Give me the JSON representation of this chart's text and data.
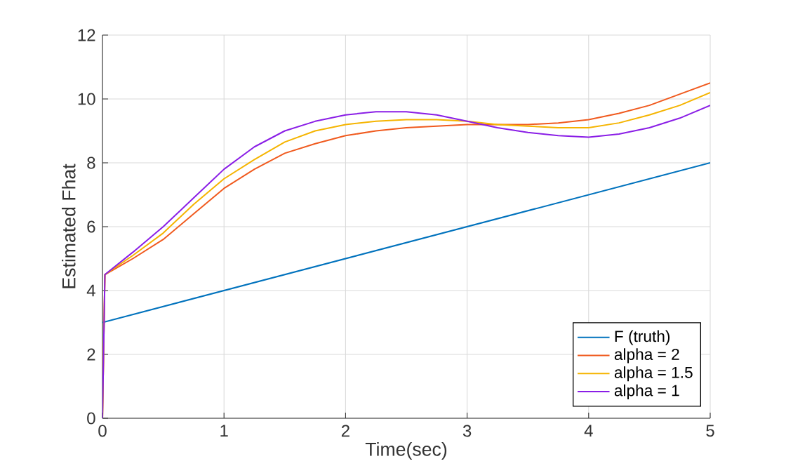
{
  "chart_data": {
    "type": "line",
    "xlabel": "Time(sec)",
    "ylabel": "Estimated Fhat",
    "xlim": [
      0,
      5
    ],
    "ylim": [
      0,
      12
    ],
    "xticks": [
      0,
      1,
      2,
      3,
      4,
      5
    ],
    "yticks": [
      0,
      2,
      4,
      6,
      8,
      10,
      12
    ],
    "grid": true,
    "legend": "bottom right",
    "line_style": "solid",
    "marker": "none",
    "series": [
      {
        "name": "F (truth)",
        "color": "#0072bd",
        "x": [
          0,
          5
        ],
        "values": [
          3,
          8
        ]
      },
      {
        "name": "alpha = 2",
        "color": "#f05a1e",
        "x": [
          0,
          0.02,
          0.25,
          0.5,
          0.75,
          1,
          1.25,
          1.5,
          1.75,
          2,
          2.25,
          2.5,
          2.75,
          3,
          3.25,
          3.5,
          3.75,
          4,
          4.25,
          4.5,
          4.75,
          5
        ],
        "values": [
          0,
          4.5,
          5.0,
          5.6,
          6.4,
          7.2,
          7.8,
          8.3,
          8.6,
          8.85,
          9.0,
          9.1,
          9.15,
          9.2,
          9.2,
          9.2,
          9.25,
          9.35,
          9.55,
          9.8,
          10.15,
          10.5
        ]
      },
      {
        "name": "alpha = 1.5",
        "color": "#f5b400",
        "x": [
          0,
          0.02,
          0.25,
          0.5,
          0.75,
          1,
          1.25,
          1.5,
          1.75,
          2,
          2.25,
          2.5,
          2.75,
          3,
          3.25,
          3.5,
          3.75,
          4,
          4.25,
          4.5,
          4.75,
          5
        ],
        "values": [
          0,
          4.5,
          5.1,
          5.8,
          6.7,
          7.5,
          8.1,
          8.65,
          9.0,
          9.2,
          9.3,
          9.35,
          9.35,
          9.3,
          9.2,
          9.15,
          9.1,
          9.1,
          9.25,
          9.5,
          9.8,
          10.2
        ]
      },
      {
        "name": "alpha = 1",
        "color": "#8a1ee6",
        "x": [
          0,
          0.02,
          0.25,
          0.5,
          0.75,
          1,
          1.25,
          1.5,
          1.75,
          2,
          2.25,
          2.5,
          2.75,
          3,
          3.25,
          3.5,
          3.75,
          4,
          4.25,
          4.5,
          4.75,
          5
        ],
        "values": [
          0,
          4.5,
          5.2,
          6.0,
          6.9,
          7.8,
          8.5,
          9.0,
          9.3,
          9.5,
          9.6,
          9.6,
          9.5,
          9.3,
          9.1,
          8.95,
          8.85,
          8.8,
          8.9,
          9.1,
          9.4,
          9.8
        ]
      }
    ]
  }
}
